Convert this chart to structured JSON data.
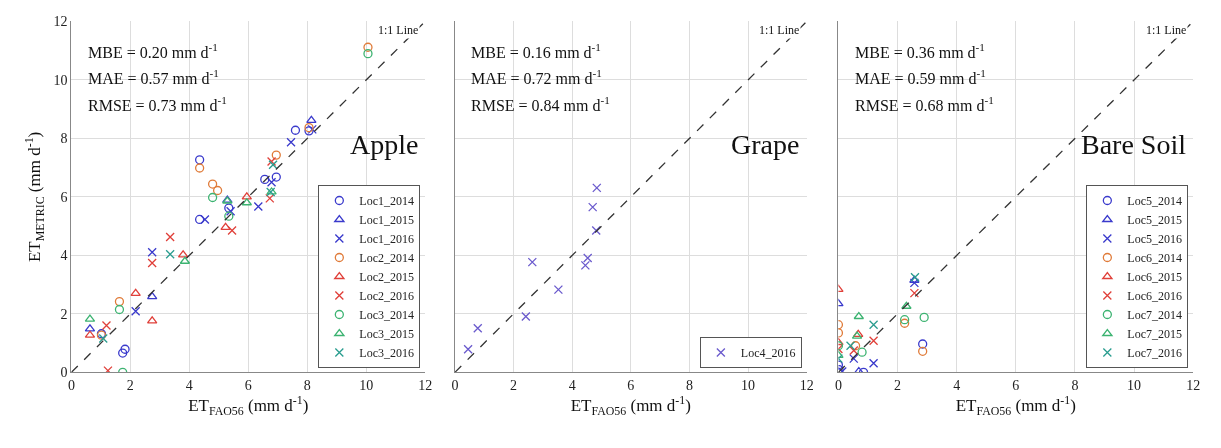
{
  "chart_data": [
    {
      "type": "scatter",
      "xlabel": "ET$_{FAO56}$ (mm d$^{-1}$)",
      "ylabel": "ET$_{METRIC}$ (mm d$^{-1}$)",
      "annotations": [
        "MBE = 0.20 mm d$^{-1}$",
        "MAE = 0.57 mm d$^{-1}$",
        "RMSE = 0.73 mm d$^{-1}$",
        "1:1 Line",
        "Apple"
      ],
      "xlim": [
        0,
        12
      ],
      "ylim": [
        0,
        12
      ],
      "xticks": [
        0,
        2,
        4,
        6,
        8,
        10,
        12
      ],
      "yticks": [
        0,
        2,
        4,
        6,
        8,
        10,
        12
      ],
      "grid": true,
      "legend": "bottom right",
      "series": [
        {
          "name": "Loc1_2014",
          "color": "#3a3acc",
          "marker": "circle",
          "x": [
            4.35,
            7.6,
            8.06,
            6.95,
            6.56,
            5.34,
            4.35,
            1.02,
            1.74,
            1.82
          ],
          "values": [
            7.27,
            8.28,
            8.26,
            6.68,
            6.6,
            5.62,
            5.23,
            1.32,
            0.66,
            0.79
          ]
        },
        {
          "name": "Loc1_2015",
          "color": "#3a3acc",
          "marker": "triangle",
          "x": [
            8.14,
            2.74,
            0.63,
            5.29
          ],
          "values": [
            8.62,
            2.59,
            1.49,
            5.89
          ]
        },
        {
          "name": "Loc1_2016",
          "color": "#3a3acc",
          "marker": "cross",
          "x": [
            4.53,
            2.74,
            2.18,
            6.34,
            7.45,
            6.79,
            5.4,
            8.17
          ],
          "values": [
            5.23,
            4.11,
            2.09,
            5.67,
            7.87,
            6.5,
            5.51,
            8.31
          ]
        },
        {
          "name": "Loc2_2014",
          "color": "#e07b39",
          "marker": "circle",
          "x": [
            10.06,
            4.35,
            4.79,
            4.96,
            1.63,
            1.02,
            6.95,
            8.06
          ],
          "values": [
            11.12,
            6.99,
            6.44,
            6.22,
            2.42,
            1.27,
            7.43,
            8.37
          ]
        },
        {
          "name": "Loc2_2015",
          "color": "#e0403a",
          "marker": "triangle",
          "x": [
            3.79,
            5.23,
            0.63,
            2.18,
            5.95,
            2.74
          ],
          "values": [
            4.02,
            4.96,
            1.27,
            2.7,
            6.0,
            1.76
          ]
        },
        {
          "name": "Loc2_2016",
          "color": "#e0403a",
          "marker": "cross",
          "x": [
            3.35,
            5.45,
            6.73,
            1.19,
            6.79,
            1.24,
            2.74
          ],
          "values": [
            4.63,
            4.85,
            5.95,
            1.6,
            7.21,
            0.06,
            3.74
          ]
        },
        {
          "name": "Loc3_2014",
          "color": "#3cb371",
          "marker": "circle",
          "x": [
            10.06,
            1.63,
            4.79,
            1.74,
            5.34
          ],
          "values": [
            10.9,
            2.15,
            5.98,
            0.0,
            5.34
          ]
        },
        {
          "name": "Loc3_2015",
          "color": "#3cb371",
          "marker": "triangle",
          "x": [
            0.63,
            5.95,
            5.29,
            3.85,
            6.79
          ],
          "values": [
            1.82,
            5.8,
            5.86,
            3.8,
            6.17
          ]
        },
        {
          "name": "Loc3_2016",
          "color": "#2a9d8f",
          "marker": "cross",
          "x": [
            3.35,
            1.08,
            6.76,
            6.84
          ],
          "values": [
            4.04,
            1.16,
            6.17,
            7.1
          ]
        },
        {
          "type": "line",
          "color": "#333333",
          "line_style": "dashed",
          "x": [
            0,
            12
          ],
          "values": [
            0,
            12
          ]
        }
      ]
    },
    {
      "type": "scatter",
      "xlabel": "ET$_{FAO56}$ (mm d$^{-1}$)",
      "annotations": [
        "MBE = 0.16 mm d$^{-1}$",
        "MAE = 0.72 mm d$^{-1}$",
        "RMSE = 0.84 mm d$^{-1}$",
        "1:1 Line",
        "Grape"
      ],
      "xlim": [
        0,
        12
      ],
      "ylim": [
        0,
        12
      ],
      "xticks": [
        0,
        2,
        4,
        6,
        8,
        10,
        12
      ],
      "yticks": [
        0,
        2,
        4,
        6,
        8,
        10,
        12
      ],
      "grid": true,
      "legend": "bottom right",
      "tick_labels": "x",
      "series": [
        {
          "name": "Loc4_2016",
          "color": "#6a5acd",
          "marker": "cross",
          "x": [
            0.45,
            0.78,
            2.42,
            2.64,
            3.53,
            4.45,
            4.53,
            4.82,
            4.7,
            4.84
          ],
          "values": [
            0.79,
            1.51,
            1.91,
            3.77,
            2.83,
            3.66,
            3.91,
            4.85,
            5.65,
            6.31
          ]
        },
        {
          "type": "line",
          "color": "#333333",
          "line_style": "dashed",
          "x": [
            0,
            12
          ],
          "values": [
            0,
            12
          ]
        }
      ]
    },
    {
      "type": "scatter",
      "xlabel": "ET$_{FAO56}$ (mm d$^{-1}$)",
      "annotations": [
        "MBE = 0.36 mm d$^{-1}$",
        "MAE = 0.59 mm d$^{-1}$",
        "RMSE = 0.68 mm d$^{-1}$",
        "1:1 Line",
        "Bare Soil"
      ],
      "xlim": [
        0,
        12
      ],
      "ylim": [
        0,
        12
      ],
      "xticks": [
        0,
        2,
        4,
        6,
        8,
        10,
        12
      ],
      "yticks": [
        0,
        2,
        4,
        6,
        8,
        10,
        12
      ],
      "grid": true,
      "legend": "bottom right",
      "tick_labels": "x",
      "series": [
        {
          "name": "Loc5_2014",
          "color": "#3a3acc",
          "marker": "circle",
          "x": [
            2.85,
            0.85,
            0.02,
            0.0
          ],
          "values": [
            0.97,
            0.0,
            0.09,
            0.25
          ]
        },
        {
          "name": "Loc5_2015",
          "color": "#3a3acc",
          "marker": "triangle",
          "x": [
            0.0,
            2.57,
            0.69
          ],
          "values": [
            2.35,
            3.15,
            0.03
          ]
        },
        {
          "name": "Loc5_2016",
          "color": "#3a3acc",
          "marker": "cross",
          "x": [
            2.57,
            1.19,
            0.13,
            0.52
          ],
          "values": [
            3.06,
            0.31,
            0.03,
            0.47
          ]
        },
        {
          "name": "Loc6_2014",
          "color": "#e07b39",
          "marker": "circle",
          "x": [
            0.0,
            2.85,
            2.24,
            0.0,
            0.58
          ],
          "values": [
            1.63,
            0.72,
            1.68,
            1.35,
            0.91
          ]
        },
        {
          "name": "Loc6_2015",
          "color": "#e0403a",
          "marker": "triangle",
          "x": [
            0.0,
            0.67,
            0.0
          ],
          "values": [
            2.84,
            1.3,
            1.02
          ]
        },
        {
          "name": "Loc6_2016",
          "color": "#e0403a",
          "marker": "cross",
          "x": [
            2.57,
            1.19,
            0.52,
            0.0
          ],
          "values": [
            2.71,
            1.08,
            0.75,
            0.8
          ]
        },
        {
          "name": "Loc7_2014",
          "color": "#3cb371",
          "marker": "circle",
          "x": [
            2.9,
            2.24,
            0.0,
            0.8
          ],
          "values": [
            1.88,
            1.8,
            0.91,
            0.69
          ]
        },
        {
          "name": "Loc7_2015",
          "color": "#3cb371",
          "marker": "triangle",
          "x": [
            0.69,
            0.63,
            0.0,
            2.3
          ],
          "values": [
            1.91,
            1.24,
            0.58,
            2.26
          ]
        },
        {
          "name": "Loc7_2016",
          "color": "#2a9d8f",
          "marker": "cross",
          "x": [
            2.59,
            1.19,
            0.41,
            0.0
          ],
          "values": [
            3.25,
            1.63,
            0.91,
            0.47
          ]
        },
        {
          "type": "line",
          "color": "#333333",
          "line_style": "dashed",
          "x": [
            0,
            12
          ],
          "values": [
            0,
            12
          ]
        }
      ]
    }
  ]
}
